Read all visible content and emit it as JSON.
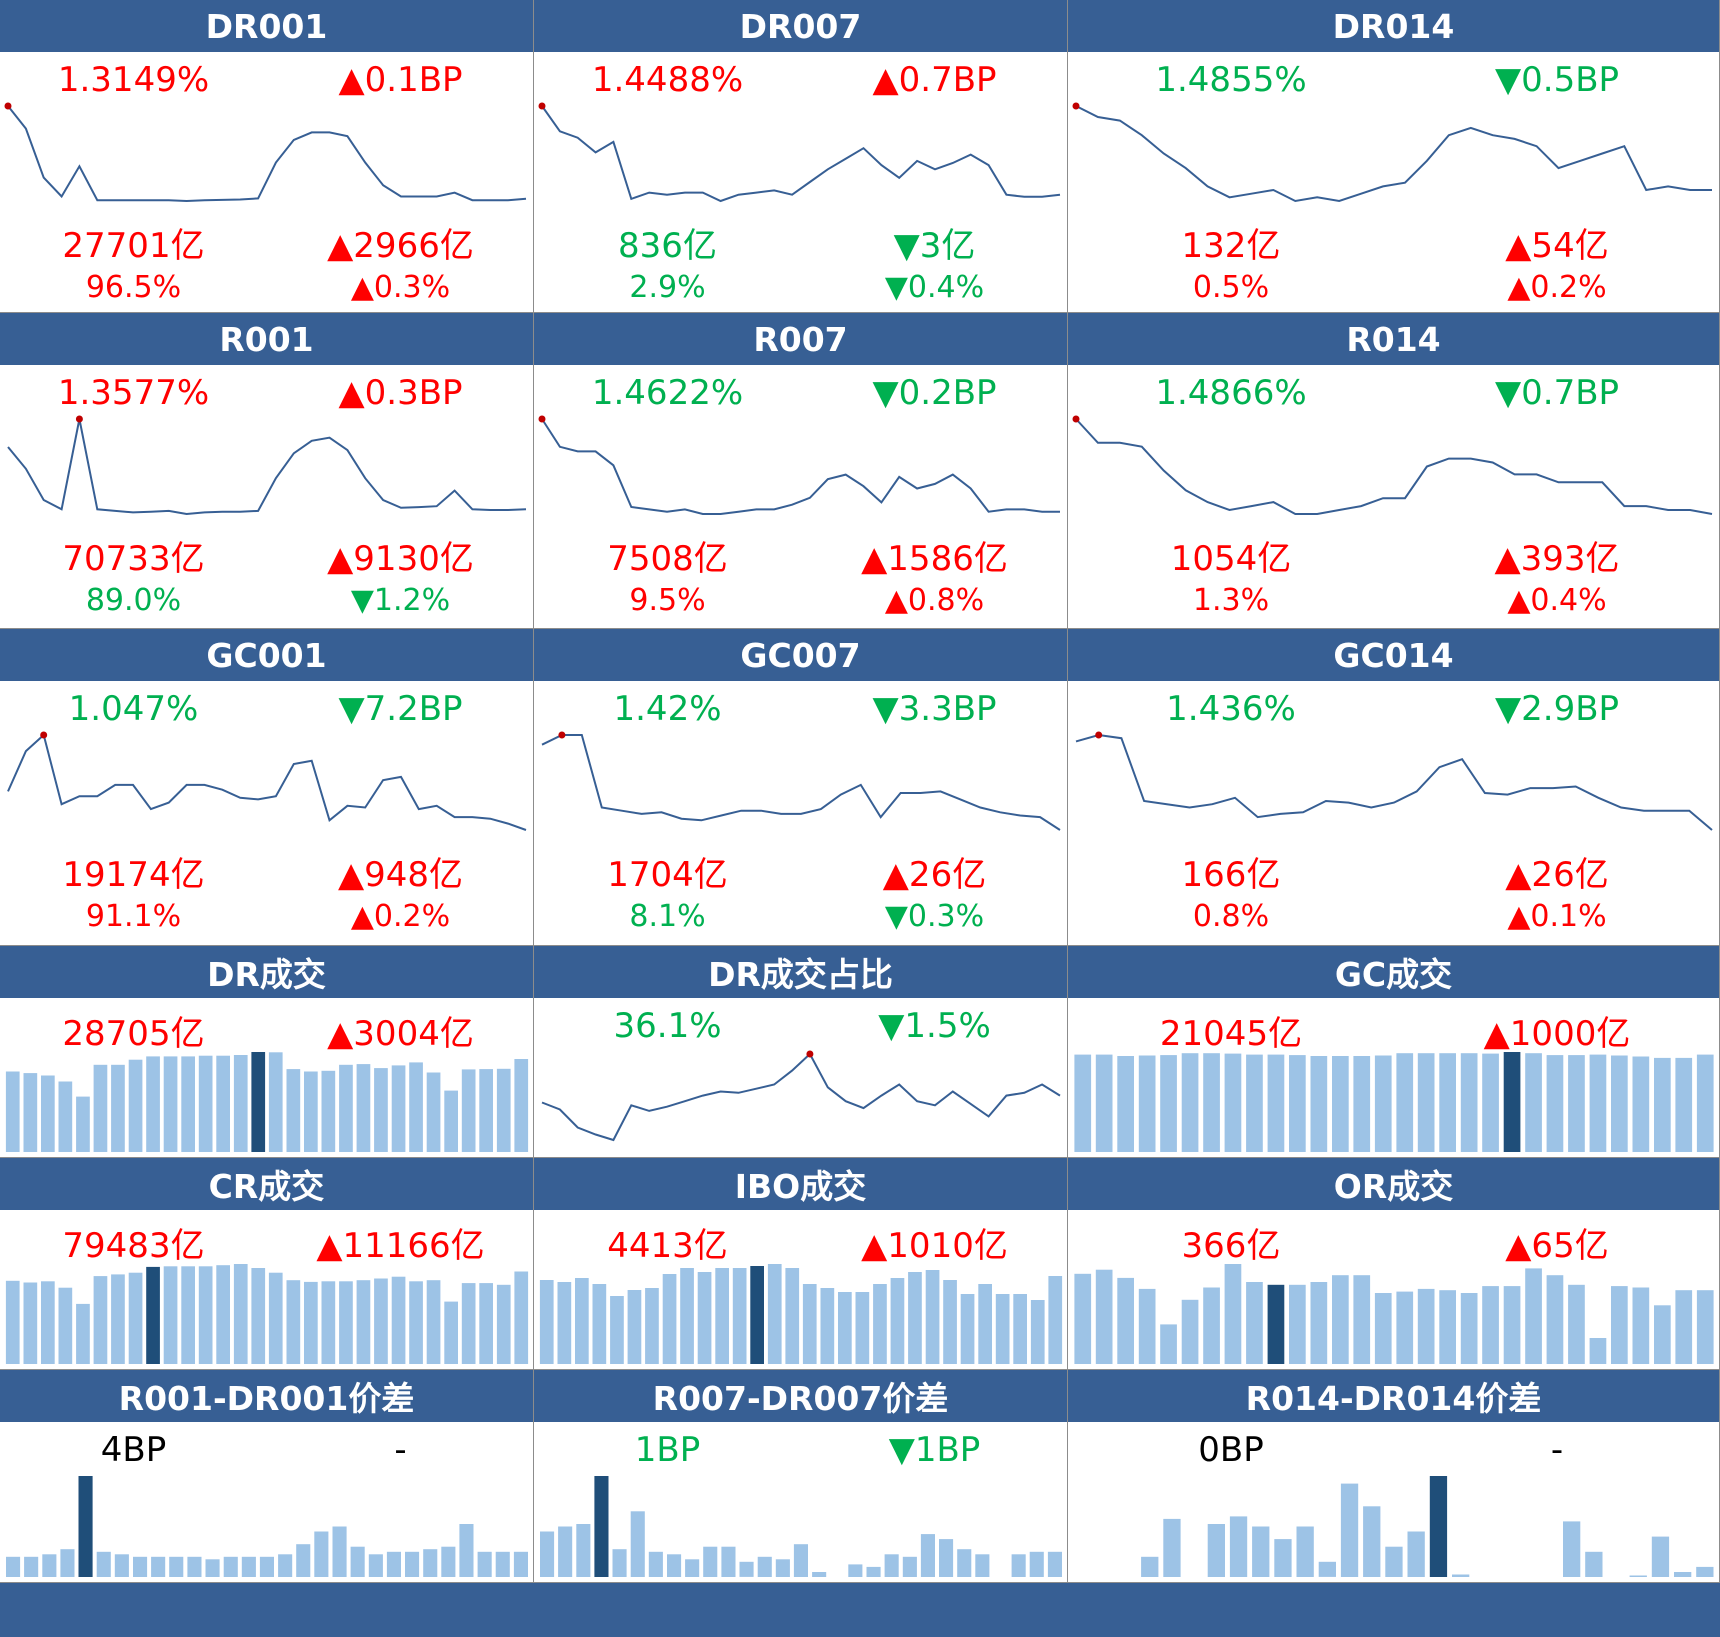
{
  "colors": {
    "header": "#375f94",
    "up": "#ff0000",
    "down": "#00b050",
    "neutral": "#000000",
    "line": "#375f94",
    "bar": "#9dc3e6",
    "bar_highlight": "#1f4e79",
    "marker": "#c00000"
  },
  "panels": [
    {
      "title": "DR001",
      "type": "line",
      "rate": "1.3149%",
      "rate_dir": "up",
      "bp_change": "▲0.1BP",
      "bp_dir": "up",
      "volume": "27701亿",
      "volume_dir": "up",
      "volume_change": "▲2966亿",
      "volume_change_dir": "up",
      "share": "96.5%",
      "share_dir": "up",
      "share_change": "▲0.3%",
      "share_change_dir": "up",
      "chart_data": {
        "type": "line",
        "title": "DR001",
        "marker_index": 0,
        "values": [
          1.93,
          1.87,
          1.74,
          1.69,
          1.77,
          1.68,
          1.68,
          1.68,
          1.68,
          1.68,
          1.678,
          1.68,
          1.681,
          1.682,
          1.685,
          1.78,
          1.84,
          1.86,
          1.86,
          1.85,
          1.78,
          1.72,
          1.69,
          1.69,
          1.69,
          1.7,
          1.68,
          1.68,
          1.68,
          1.684
        ]
      }
    },
    {
      "title": "DR007",
      "type": "line",
      "rate": "1.4488%",
      "rate_dir": "up",
      "bp_change": "▲0.7BP",
      "bp_dir": "up",
      "volume": "836亿",
      "volume_dir": "down",
      "volume_change": "▼3亿",
      "volume_change_dir": "down",
      "share": "2.9%",
      "share_dir": "down",
      "share_change": "▼0.4%",
      "share_change_dir": "down",
      "chart_data": {
        "type": "line",
        "title": "DR007",
        "marker_index": 0,
        "values": [
          2.1,
          1.98,
          1.95,
          1.88,
          1.93,
          1.66,
          1.69,
          1.68,
          1.69,
          1.69,
          1.65,
          1.68,
          1.69,
          1.7,
          1.68,
          1.74,
          1.8,
          1.85,
          1.9,
          1.82,
          1.76,
          1.84,
          1.8,
          1.83,
          1.87,
          1.82,
          1.68,
          1.67,
          1.67,
          1.68
        ]
      }
    },
    {
      "title": "DR014",
      "type": "line",
      "rate": "1.4855%",
      "rate_dir": "down",
      "bp_change": "▼0.5BP",
      "bp_dir": "down",
      "volume": "132亿",
      "volume_dir": "up",
      "volume_change": "▲54亿",
      "volume_change_dir": "up",
      "share": "0.5%",
      "share_dir": "up",
      "share_change": "▲0.2%",
      "share_change_dir": "up",
      "chart_data": {
        "type": "line",
        "title": "DR014",
        "marker_index": 0,
        "values": [
          2.05,
          2.02,
          2.01,
          1.97,
          1.92,
          1.88,
          1.83,
          1.8,
          1.81,
          1.82,
          1.79,
          1.8,
          1.79,
          1.81,
          1.83,
          1.84,
          1.9,
          1.97,
          1.99,
          1.97,
          1.96,
          1.94,
          1.88,
          1.9,
          1.92,
          1.94,
          1.82,
          1.83,
          1.82,
          1.82
        ]
      }
    },
    {
      "title": "R001",
      "type": "line",
      "rate": "1.3577%",
      "rate_dir": "up",
      "bp_change": "▲0.3BP",
      "bp_dir": "up",
      "volume": "70733亿",
      "volume_dir": "up",
      "volume_change": "▲9130亿",
      "volume_change_dir": "up",
      "share": "89.0%",
      "share_dir": "down",
      "share_change": "▼1.2%",
      "share_change_dir": "down",
      "chart_data": {
        "type": "line",
        "title": "R001",
        "marker_index": 4,
        "values": [
          1.86,
          1.79,
          1.69,
          1.66,
          1.95,
          1.66,
          1.655,
          1.65,
          1.652,
          1.655,
          1.645,
          1.65,
          1.652,
          1.652,
          1.655,
          1.76,
          1.84,
          1.88,
          1.89,
          1.85,
          1.76,
          1.69,
          1.665,
          1.667,
          1.67,
          1.72,
          1.66,
          1.658,
          1.658,
          1.66
        ]
      }
    },
    {
      "title": "R007",
      "type": "line",
      "rate": "1.4622%",
      "rate_dir": "down",
      "bp_change": "▼0.2BP",
      "bp_dir": "down",
      "volume": "7508亿",
      "volume_dir": "up",
      "volume_change": "▲1586亿",
      "volume_change_dir": "up",
      "share": "9.5%",
      "share_dir": "up",
      "share_change": "▲0.8%",
      "share_change_dir": "up",
      "chart_data": {
        "type": "line",
        "title": "R007",
        "marker_index": 0,
        "values": [
          2.1,
          1.98,
          1.96,
          1.96,
          1.9,
          1.72,
          1.71,
          1.7,
          1.71,
          1.69,
          1.69,
          1.7,
          1.71,
          1.71,
          1.73,
          1.76,
          1.84,
          1.86,
          1.81,
          1.74,
          1.85,
          1.8,
          1.82,
          1.86,
          1.8,
          1.7,
          1.71,
          1.71,
          1.7,
          1.7
        ]
      }
    },
    {
      "title": "R014",
      "type": "line",
      "rate": "1.4866%",
      "rate_dir": "down",
      "bp_change": "▼0.7BP",
      "bp_dir": "down",
      "volume": "1054亿",
      "volume_dir": "up",
      "volume_change": "▲393亿",
      "volume_change_dir": "up",
      "share": "1.3%",
      "share_dir": "up",
      "share_change": "▲0.4%",
      "share_change_dir": "up",
      "chart_data": {
        "type": "line",
        "title": "R014",
        "marker_index": 0,
        "values": [
          2.08,
          2.02,
          2.02,
          2.01,
          1.95,
          1.9,
          1.87,
          1.85,
          1.86,
          1.87,
          1.84,
          1.84,
          1.85,
          1.86,
          1.88,
          1.88,
          1.96,
          1.98,
          1.98,
          1.97,
          1.94,
          1.94,
          1.92,
          1.92,
          1.92,
          1.86,
          1.86,
          1.85,
          1.85,
          1.84
        ]
      }
    },
    {
      "title": "GC001",
      "type": "line",
      "rate": "1.047%",
      "rate_dir": "down",
      "bp_change": "▼7.2BP",
      "bp_dir": "down",
      "volume": "19174亿",
      "volume_dir": "up",
      "volume_change": "▲948亿",
      "volume_change_dir": "up",
      "share": "91.1%",
      "share_dir": "up",
      "share_change": "▲0.2%",
      "share_change_dir": "up",
      "chart_data": {
        "type": "line",
        "title": "GC001",
        "marker_index": 2,
        "values": [
          1.55,
          1.8,
          1.9,
          1.47,
          1.52,
          1.52,
          1.59,
          1.59,
          1.44,
          1.48,
          1.59,
          1.59,
          1.56,
          1.51,
          1.5,
          1.52,
          1.72,
          1.74,
          1.37,
          1.46,
          1.45,
          1.62,
          1.64,
          1.44,
          1.46,
          1.39,
          1.39,
          1.38,
          1.35,
          1.31
        ]
      }
    },
    {
      "title": "GC007",
      "type": "line",
      "rate": "1.42%",
      "rate_dir": "down",
      "bp_change": "▼3.3BP",
      "bp_dir": "down",
      "volume": "1704亿",
      "volume_dir": "up",
      "volume_change": "▲26亿",
      "volume_change_dir": "up",
      "share": "8.1%",
      "share_dir": "down",
      "share_change": "▼0.3%",
      "share_change_dir": "down",
      "chart_data": {
        "type": "line",
        "title": "GC007",
        "marker_index": 1,
        "values": [
          2.16,
          2.22,
          2.22,
          1.77,
          1.75,
          1.73,
          1.74,
          1.7,
          1.69,
          1.72,
          1.75,
          1.75,
          1.73,
          1.73,
          1.76,
          1.85,
          1.91,
          1.71,
          1.86,
          1.86,
          1.87,
          1.82,
          1.77,
          1.74,
          1.72,
          1.71,
          1.63
        ]
      }
    },
    {
      "title": "GC014",
      "type": "line",
      "rate": "1.436%",
      "rate_dir": "down",
      "bp_change": "▼2.9BP",
      "bp_dir": "down",
      "volume": "166亿",
      "volume_dir": "up",
      "volume_change": "▲26亿",
      "volume_change_dir": "up",
      "share": "0.8%",
      "share_dir": "up",
      "share_change": "▲0.1%",
      "share_change_dir": "up",
      "chart_data": {
        "type": "line",
        "title": "GC014",
        "marker_index": 1,
        "values": [
          2.17,
          2.21,
          2.19,
          1.8,
          1.78,
          1.76,
          1.78,
          1.82,
          1.7,
          1.72,
          1.73,
          1.8,
          1.79,
          1.76,
          1.79,
          1.86,
          2.01,
          2.06,
          1.85,
          1.84,
          1.88,
          1.88,
          1.89,
          1.82,
          1.76,
          1.74,
          1.74,
          1.74,
          1.62
        ]
      }
    },
    {
      "title": "DR成交",
      "type": "bar",
      "value": "28705亿",
      "value_dir": "up",
      "change": "▲3004亿",
      "change_dir": "up",
      "chart_data": {
        "type": "bar",
        "title": "DR成交",
        "highlight_index": 14,
        "values": [
          24000,
          23500,
          22800,
          21000,
          16500,
          26000,
          26000,
          27500,
          28500,
          28500,
          28500,
          28700,
          28700,
          28900,
          29800,
          29700,
          24700,
          24000,
          24200,
          26000,
          26200,
          25000,
          25800,
          26700,
          23700,
          18300,
          24600,
          24700,
          24800,
          27700
        ]
      }
    },
    {
      "title": "DR成交占比",
      "type": "line",
      "value": "36.1%",
      "value_dir": "down",
      "change": "▼1.5%",
      "change_dir": "down",
      "chart_data": {
        "type": "line",
        "title": "DR成交占比",
        "marker_index": 15,
        "values": [
          33.5,
          33.0,
          31.7,
          31.2,
          30.8,
          33.3,
          32.9,
          33.2,
          33.6,
          34.0,
          34.3,
          34.2,
          34.5,
          34.8,
          35.8,
          37.0,
          34.6,
          33.6,
          33.1,
          34.0,
          34.8,
          33.6,
          33.3,
          34.3,
          33.4,
          32.5,
          34.0,
          34.2,
          34.8,
          34.0
        ]
      }
    },
    {
      "title": "GC成交",
      "type": "bar",
      "value": "21045亿",
      "value_dir": "up",
      "change": "▲1000亿",
      "change_dir": "up",
      "chart_data": {
        "type": "bar",
        "title": "GC成交",
        "highlight_index": 20,
        "values": [
          20500,
          20500,
          20200,
          20300,
          20400,
          20800,
          20800,
          20700,
          20500,
          20500,
          20400,
          20200,
          20200,
          20200,
          20300,
          20800,
          20800,
          20800,
          20800,
          20700,
          21045,
          20800,
          20400,
          20400,
          20500,
          20300,
          20100,
          19800,
          19800,
          20500
        ]
      }
    },
    {
      "title": "CR成交",
      "type": "bar",
      "value": "79483亿",
      "value_dir": "up",
      "change": "▲11166亿",
      "change_dir": "up",
      "chart_data": {
        "type": "bar",
        "title": "CR成交",
        "highlight_index": 8,
        "values": [
          72000,
          70500,
          71500,
          66000,
          52000,
          76000,
          77500,
          79000,
          84000,
          84500,
          84500,
          84500,
          85500,
          86500,
          83000,
          79000,
          72500,
          71000,
          71500,
          71500,
          72500,
          74000,
          75500,
          71500,
          72500,
          54000,
          70000,
          70000,
          68500,
          80000
        ]
      }
    },
    {
      "title": "IBO成交",
      "type": "bar",
      "value": "4413亿",
      "value_dir": "up",
      "change": "▲1010亿",
      "change_dir": "up",
      "chart_data": {
        "type": "bar",
        "title": "IBO成交",
        "highlight_index": 12,
        "values": [
          4200,
          4100,
          4300,
          4000,
          3400,
          3700,
          3800,
          4500,
          4800,
          4600,
          4800,
          4800,
          4900,
          5000,
          4800,
          4000,
          3800,
          3600,
          3600,
          4000,
          4300,
          4600,
          4700,
          4200,
          3500,
          4000,
          3500,
          3500,
          3200,
          4400
        ]
      }
    },
    {
      "title": "OR成交",
      "type": "bar",
      "value": "366亿",
      "value_dir": "up",
      "change": "▲65亿",
      "change_dir": "up",
      "chart_data": {
        "type": "bar",
        "title": "OR成交",
        "highlight_index": 9,
        "values": [
          330,
          345,
          315,
          275,
          145,
          235,
          280,
          366,
          300,
          290,
          290,
          300,
          325,
          325,
          260,
          265,
          275,
          270,
          260,
          285,
          285,
          350,
          325,
          290,
          95,
          285,
          280,
          215,
          270,
          270
        ]
      }
    },
    {
      "title": "R001-DR001价差",
      "type": "bar",
      "value": "4BP",
      "value_dir": "neutral",
      "change": "-",
      "change_dir": "neutral",
      "chart_data": {
        "type": "bar",
        "title": "R001-DR001价差",
        "highlight_index": 4,
        "values": [
          0.8,
          0.8,
          0.9,
          1.1,
          4,
          1.0,
          0.9,
          0.8,
          0.8,
          0.8,
          0.8,
          0.7,
          0.8,
          0.8,
          0.8,
          0.9,
          1.3,
          1.8,
          2.0,
          1.2,
          0.9,
          1.0,
          1.0,
          1.1,
          1.2,
          2.1,
          1.0,
          1.0,
          1.0
        ]
      }
    },
    {
      "title": "R007-DR007价差",
      "type": "bar",
      "value": "1BP",
      "value_dir": "down",
      "change": "▼1BP",
      "change_dir": "down",
      "chart_data": {
        "type": "bar",
        "title": "R007-DR007价差",
        "highlight_index": 3,
        "values": [
          1.8,
          2.0,
          2.1,
          4.0,
          1.1,
          2.6,
          1.0,
          0.9,
          0.7,
          1.2,
          1.2,
          0.6,
          0.8,
          0.7,
          1.3,
          0.2,
          0,
          0.5,
          0.4,
          0.9,
          0.8,
          1.7,
          1.5,
          1.1,
          0.9,
          0,
          0.9,
          1.0,
          1.0
        ]
      }
    },
    {
      "title": "R014-DR014价差",
      "type": "bar",
      "value": "0BP",
      "value_dir": "neutral",
      "change": "-",
      "change_dir": "neutral",
      "chart_data": {
        "type": "bar",
        "title": "R014-DR014价差",
        "highlight_index": 16,
        "values": [
          0,
          0,
          0,
          0.8,
          2.3,
          0,
          2.1,
          2.4,
          2.0,
          1.5,
          2.0,
          0.6,
          3.7,
          2.8,
          1.2,
          1.8,
          4.0,
          0.1,
          0,
          0,
          0,
          0,
          2.2,
          1.0,
          0,
          0.05,
          1.6,
          0.2,
          0.4
        ]
      }
    }
  ]
}
